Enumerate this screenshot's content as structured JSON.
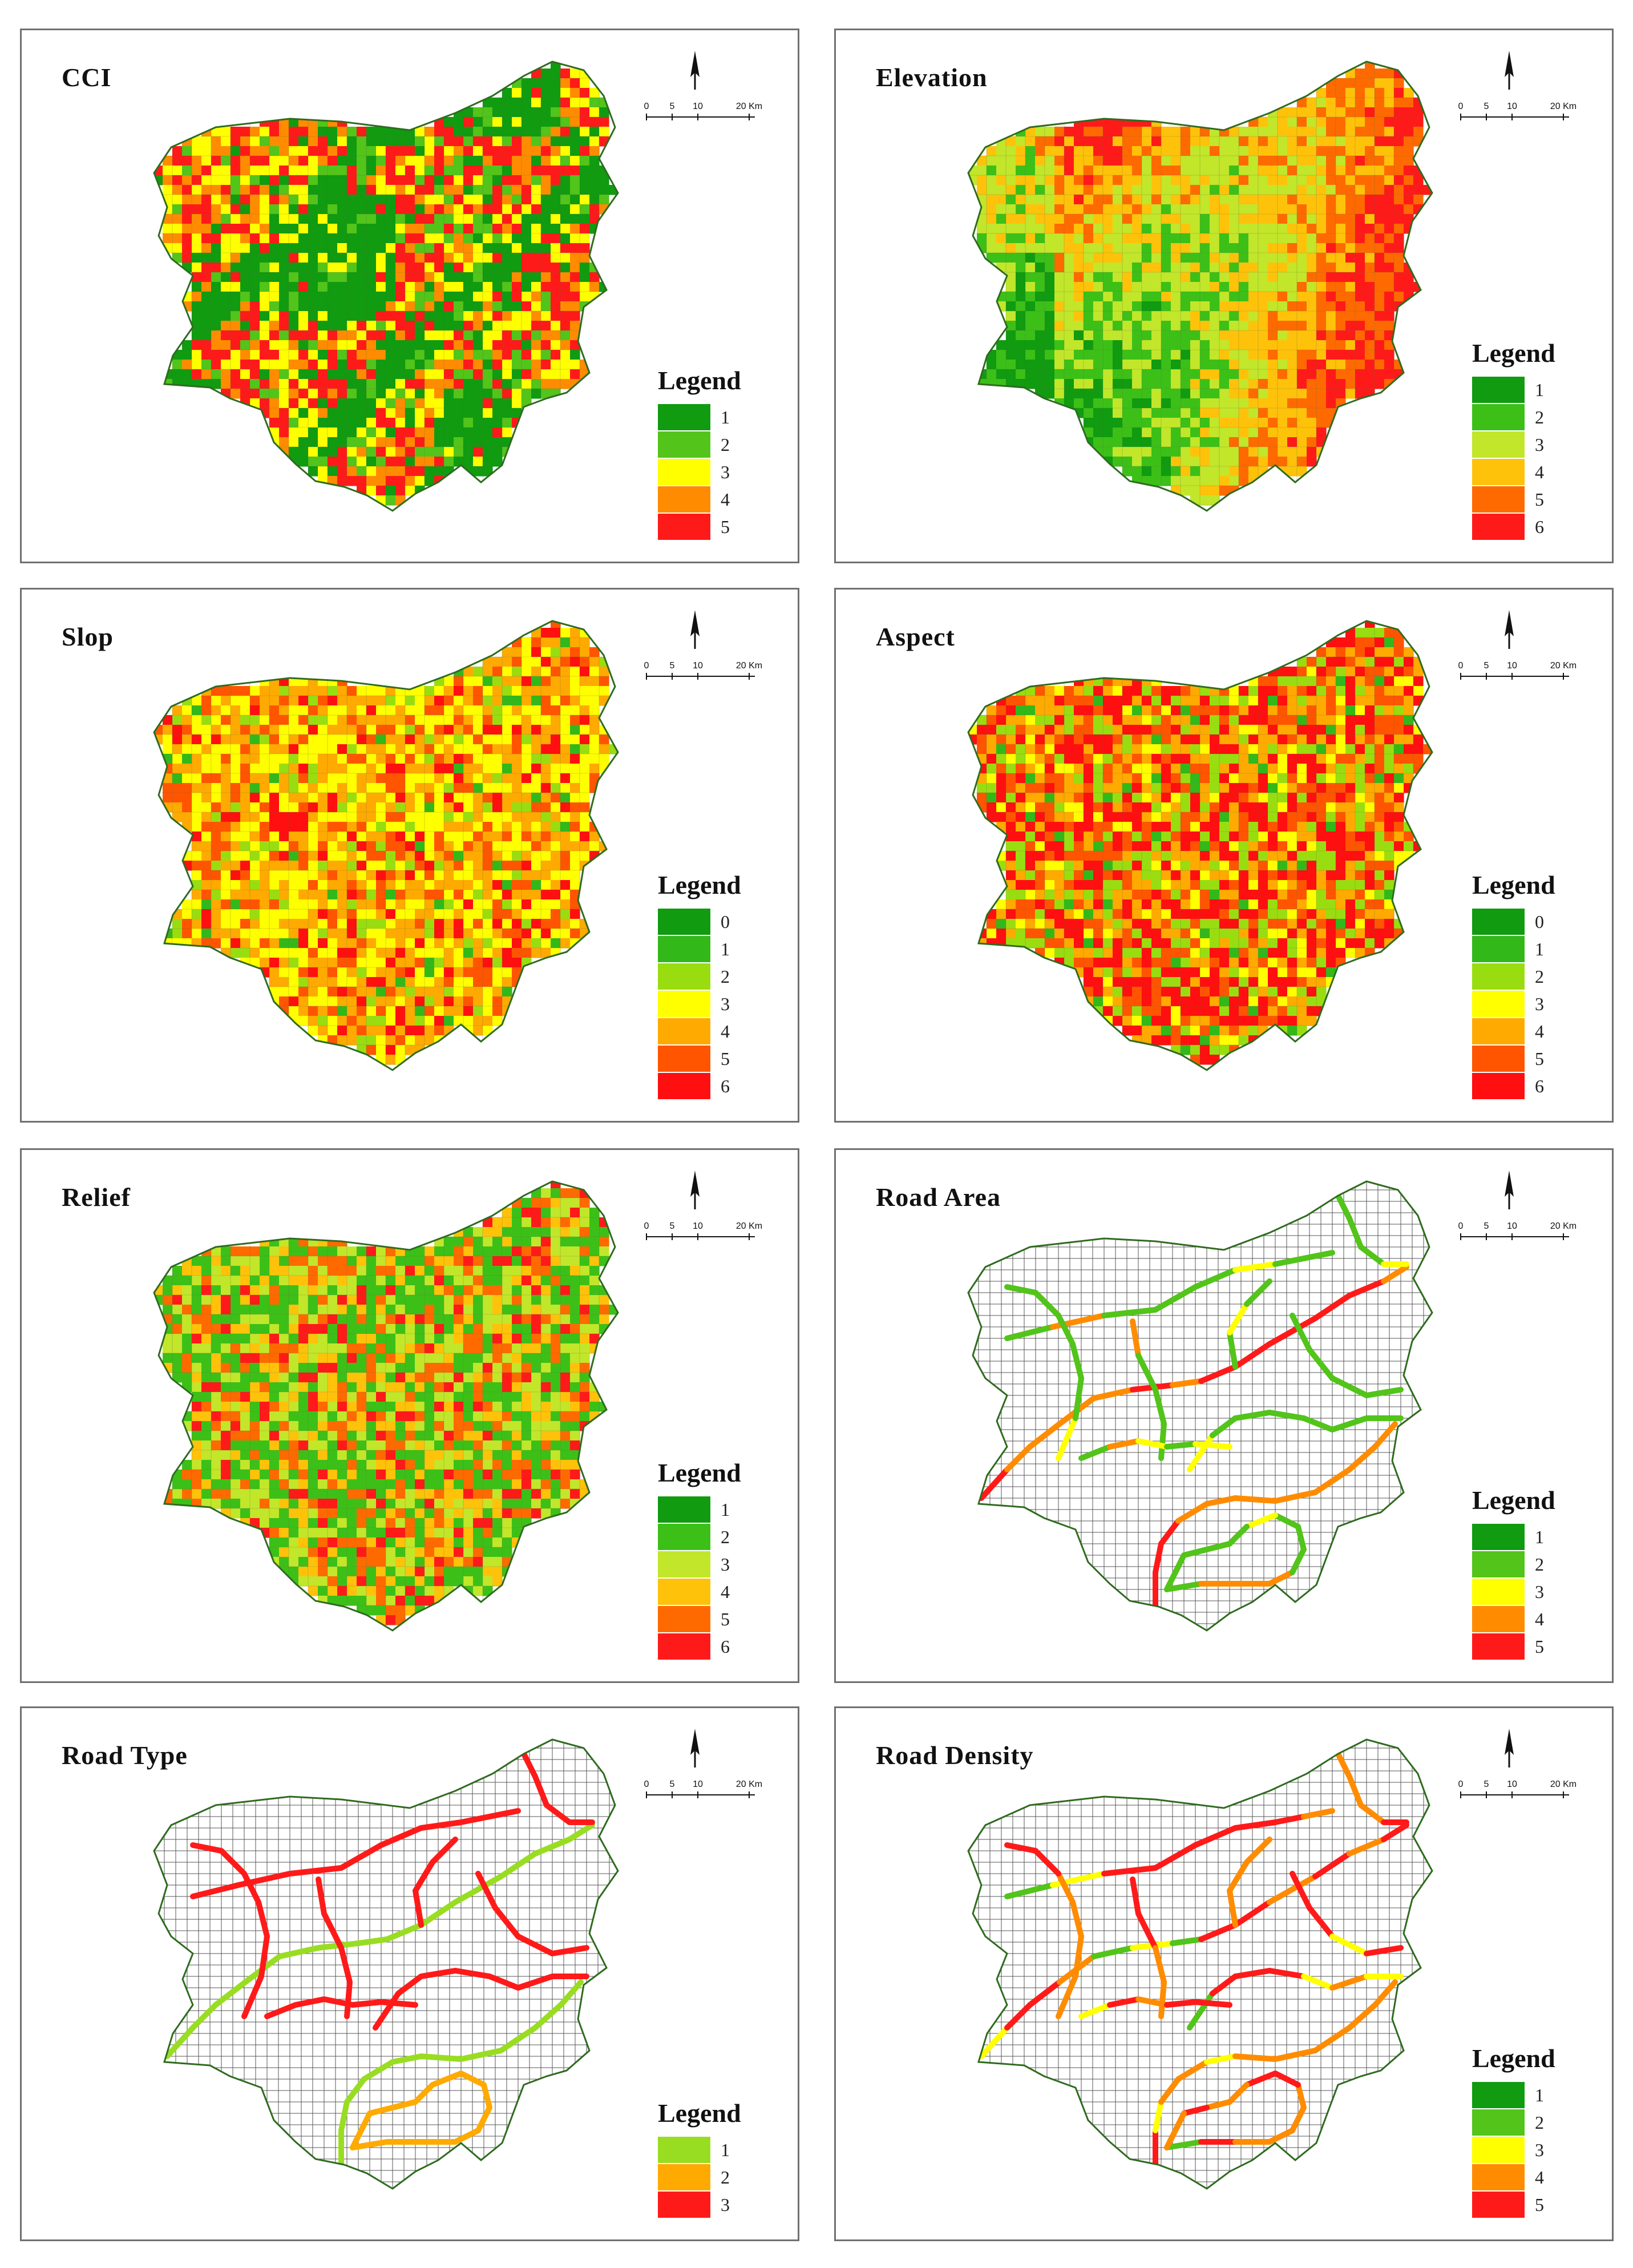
{
  "scale": {
    "ticks": [
      "0",
      "5",
      "10",
      "20 Km"
    ]
  },
  "legend_title": "Legend",
  "palettes": {
    "g5": [
      "#109b10",
      "#52c41a",
      "#ffff00",
      "#ff8c00",
      "#ff1a1a"
    ],
    "g6": [
      "#109b10",
      "#3cc018",
      "#c2e62a",
      "#ffc20a",
      "#ff6a00",
      "#ff1a1a"
    ],
    "g7": [
      "#109b10",
      "#33b81a",
      "#99dd11",
      "#ffff00",
      "#ffaa00",
      "#ff5500",
      "#ff0f0f"
    ],
    "g3": [
      "#99dd22",
      "#ffaa00",
      "#ff1a1a"
    ]
  },
  "panels": [
    {
      "id": "cci",
      "title": "CCI",
      "type": "raster",
      "pattern": "cci",
      "palette": "g5",
      "legend_labels": [
        "1",
        "2",
        "3",
        "4",
        "5"
      ]
    },
    {
      "id": "elevation",
      "title": "Elevation",
      "type": "raster",
      "pattern": "elevation",
      "palette": "g6",
      "legend_labels": [
        "1",
        "2",
        "3",
        "4",
        "5",
        "6"
      ]
    },
    {
      "id": "slop",
      "title": "Slop",
      "type": "raster",
      "pattern": "slope",
      "palette": "g7",
      "legend_labels": [
        "0",
        "1",
        "2",
        "3",
        "4",
        "5",
        "6"
      ]
    },
    {
      "id": "aspect",
      "title": "Aspect",
      "type": "raster",
      "pattern": "aspect",
      "palette": "g7",
      "legend_labels": [
        "0",
        "1",
        "2",
        "3",
        "4",
        "5",
        "6"
      ]
    },
    {
      "id": "relief",
      "title": "Relief",
      "type": "raster",
      "pattern": "relief",
      "palette": "g6",
      "legend_labels": [
        "1",
        "2",
        "3",
        "4",
        "5",
        "6"
      ]
    },
    {
      "id": "road-area",
      "title": "Road Area",
      "type": "roads",
      "pattern": "area",
      "palette": "g5",
      "legend_labels": [
        "1",
        "2",
        "3",
        "4",
        "5"
      ]
    },
    {
      "id": "road-type",
      "title": "Road Type",
      "type": "roads",
      "pattern": "type",
      "palette": "g3",
      "legend_labels": [
        "1",
        "2",
        "3"
      ]
    },
    {
      "id": "road-density",
      "title": "Road Density",
      "type": "roads",
      "pattern": "density",
      "palette": "g5",
      "legend_labels": [
        "1",
        "2",
        "3",
        "4",
        "5"
      ]
    }
  ]
}
